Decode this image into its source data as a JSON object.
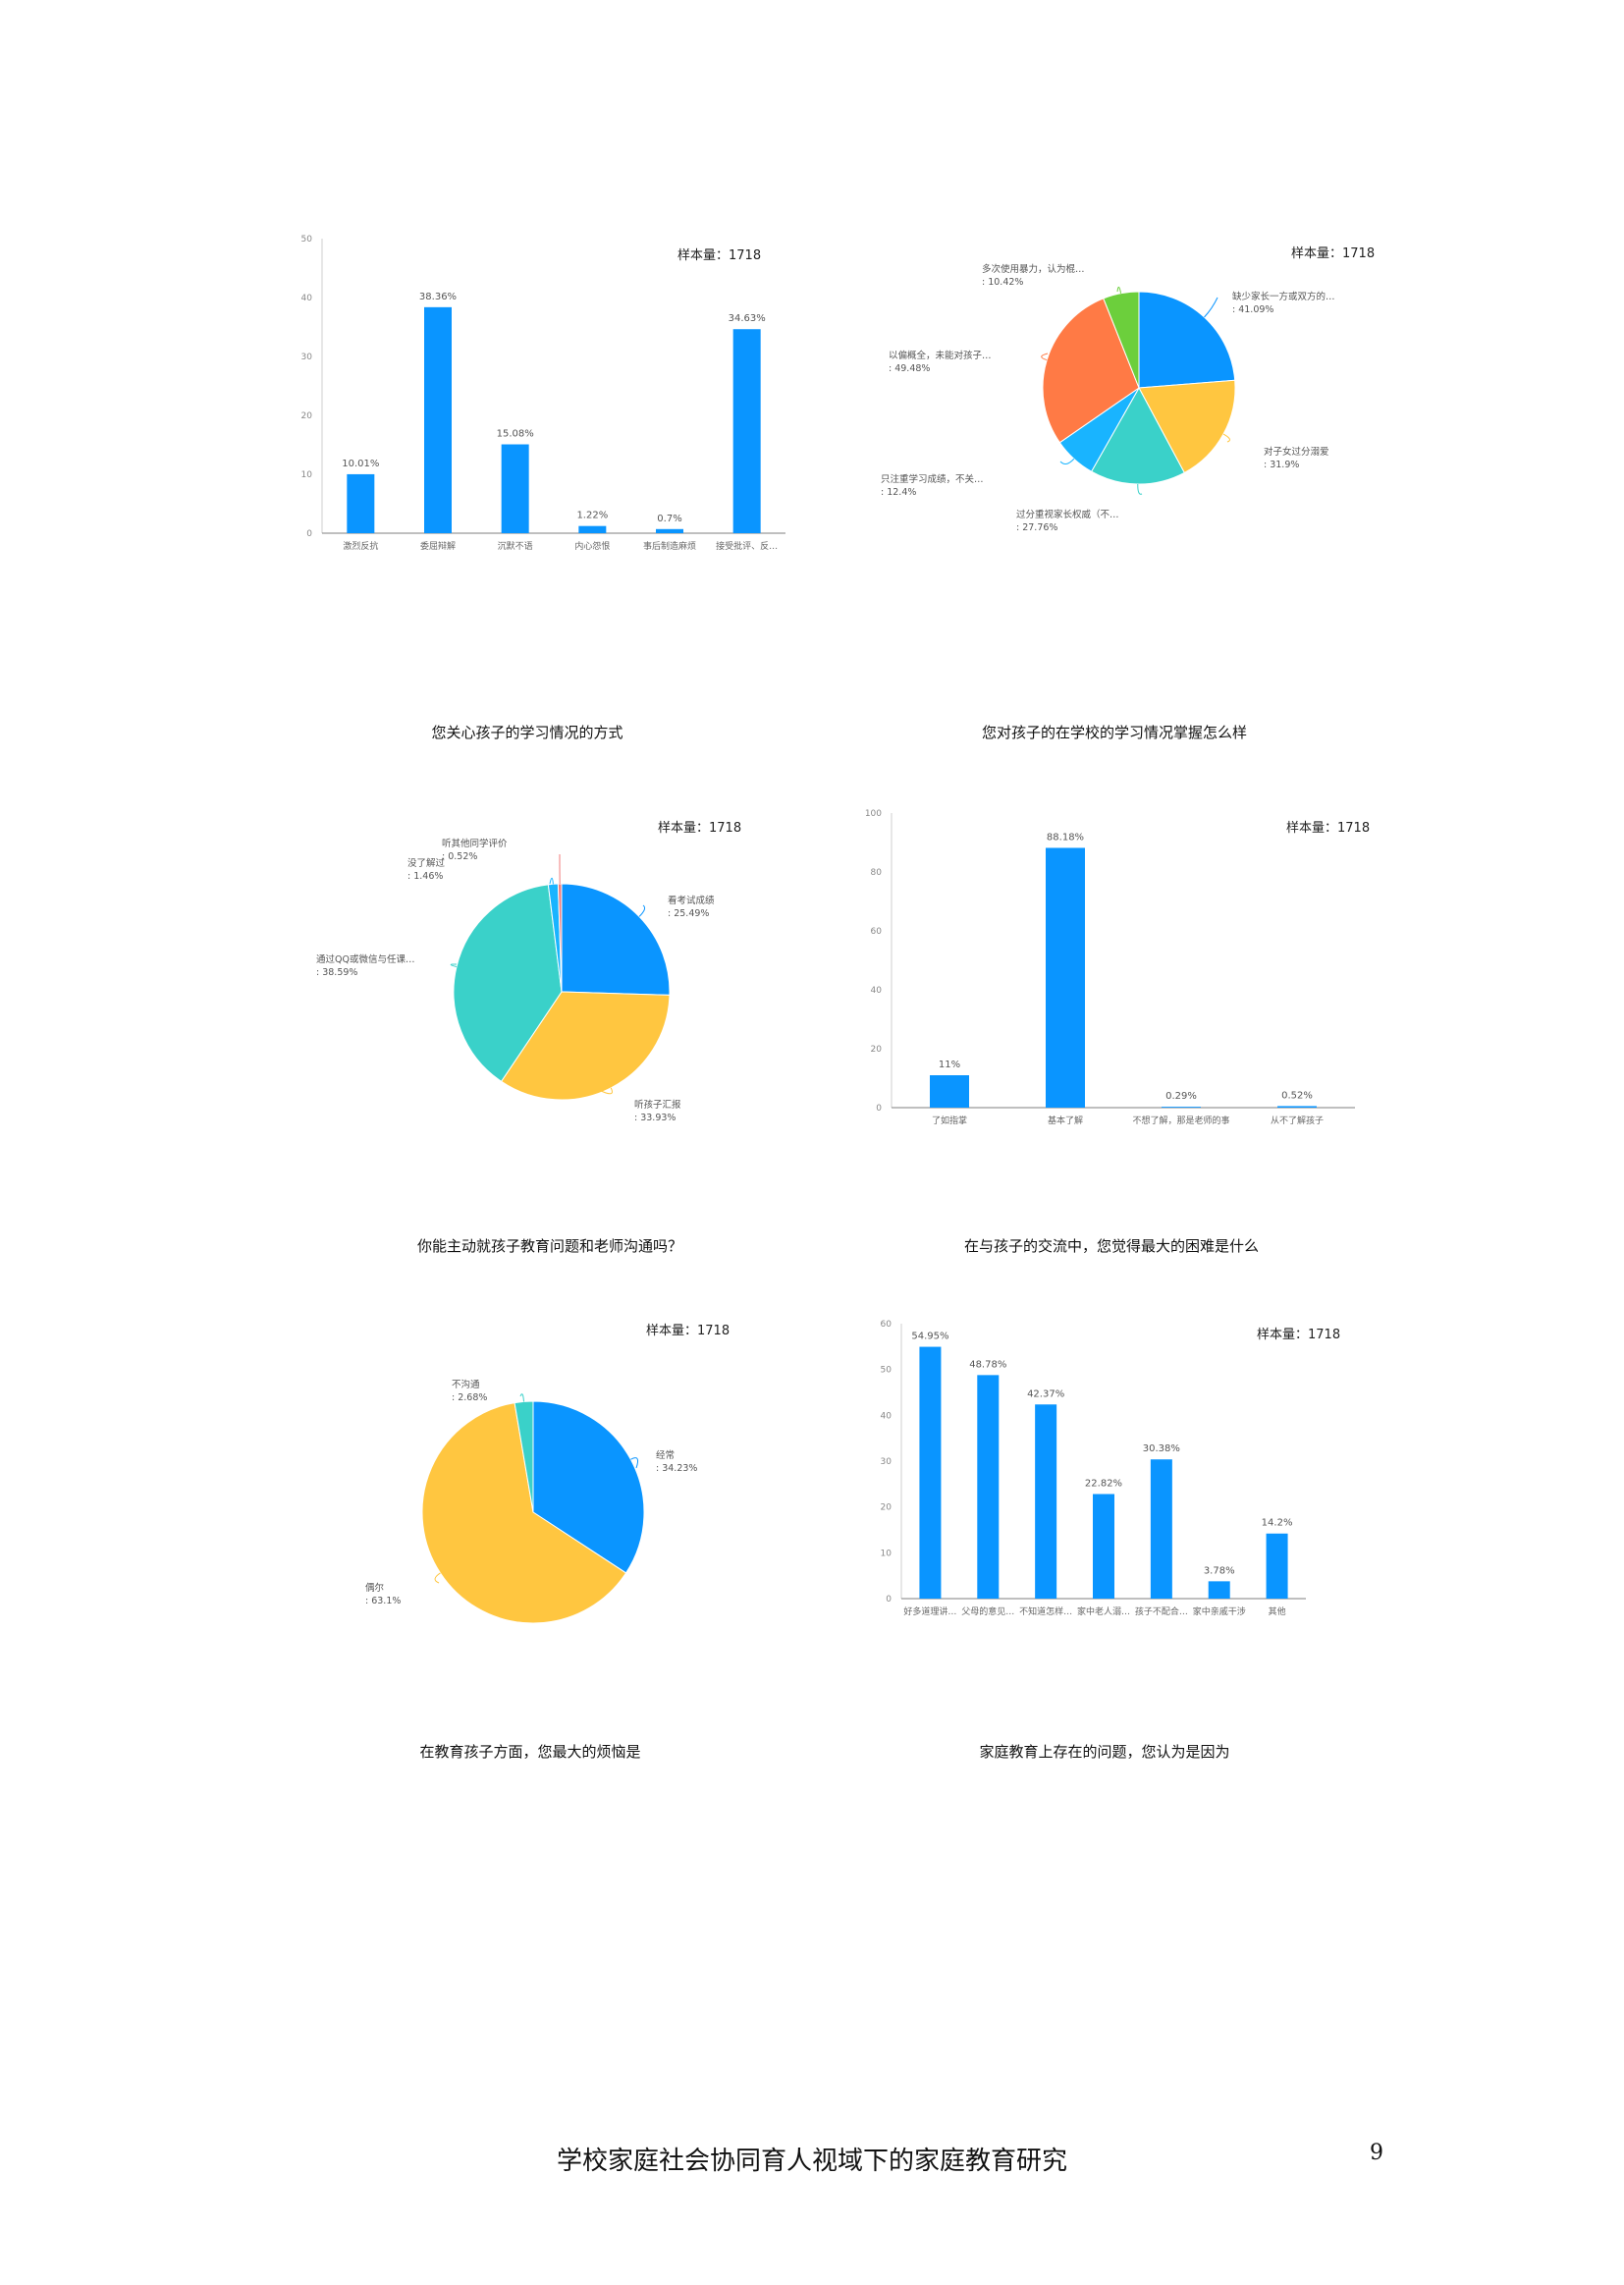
{
  "colors": {
    "blue": "#0a95ff",
    "yellow": "#ffc640",
    "teal": "#3ad1c9",
    "orange": "#ff7a45",
    "green": "#6ccf3c",
    "lightblue": "#19b4ff",
    "pink": "#f07b7b",
    "axis": "#999999"
  },
  "captions": {
    "c1": "您关心孩子的学习情况的方式",
    "c2": "您对孩子的在学校的学习情况掌握怎么样",
    "c3": "你能主动就孩子教育问题和老师沟通吗？",
    "c4": "在与孩子的交流中，您觉得最大的困难是什么",
    "c5": "在教育孩子方面，您最大的烦恼是",
    "c6": "家庭教育上存在的问题，您认为是因为"
  },
  "footer": {
    "title": "学校家庭社会协同育人视域下的家庭教育研究",
    "page": "9"
  },
  "chart_data": [
    {
      "id": "chart1",
      "type": "bar",
      "sample_label": "样本量：1718",
      "categories": [
        "激烈反抗",
        "委屈辩解",
        "沉默不语",
        "内心怨恨",
        "事后制造麻烦",
        "接受批评、反…"
      ],
      "values": [
        10.01,
        38.36,
        15.08,
        1.22,
        0.7,
        34.63
      ],
      "value_labels": [
        "10.01%",
        "38.36%",
        "15.08%",
        "1.22%",
        "0.7%",
        "34.63%"
      ],
      "ylim": [
        0,
        50
      ],
      "yticks": [
        0,
        10,
        20,
        30,
        40,
        50
      ]
    },
    {
      "id": "chart2",
      "type": "pie",
      "sample_label": "样本量：1718",
      "slices": [
        {
          "label": "缺少家长一方或双方的…",
          "pct": "41.09%",
          "value": 41.09,
          "color": "#0a95ff"
        },
        {
          "label": "对子女过分溺爱",
          "pct": "31.9%",
          "value": 31.9,
          "color": "#ffc640"
        },
        {
          "label": "过分重视家长权威（不…",
          "pct": "27.76%",
          "value": 27.76,
          "color": "#3ad1c9"
        },
        {
          "label": "只注重学习成绩，不关…",
          "pct": "12.4%",
          "value": 12.4,
          "color": "#19b4ff"
        },
        {
          "label": "以偏概全，未能对孩子…",
          "pct": "49.48%",
          "value": 49.48,
          "color": "#ff7a45"
        },
        {
          "label": "多次使用暴力，认为棍…",
          "pct": "10.42%",
          "value": 10.42,
          "color": "#6ccf3c"
        }
      ]
    },
    {
      "id": "chart3",
      "type": "pie",
      "sample_label": "样本量：1718",
      "slices": [
        {
          "label": "看考试成绩",
          "pct": "25.49%",
          "value": 25.49,
          "color": "#0a95ff"
        },
        {
          "label": "听孩子汇报",
          "pct": "33.93%",
          "value": 33.93,
          "color": "#ffc640"
        },
        {
          "label": "通过QQ或微信与任课…",
          "pct": "38.59%",
          "value": 38.59,
          "color": "#3ad1c9"
        },
        {
          "label": "没了解过",
          "pct": "1.46%",
          "value": 1.46,
          "color": "#19b4ff"
        },
        {
          "label": "听其他同学评价",
          "pct": "0.52%",
          "value": 0.52,
          "color": "#f07b7b"
        }
      ]
    },
    {
      "id": "chart4",
      "type": "bar",
      "sample_label": "样本量：1718",
      "categories": [
        "了如指掌",
        "基本了解",
        "不想了解，那是老师的事",
        "从不了解孩子"
      ],
      "values": [
        11,
        88.18,
        0.29,
        0.52
      ],
      "value_labels": [
        "11%",
        "88.18%",
        "0.29%",
        "0.52%"
      ],
      "ylim": [
        0,
        100
      ],
      "yticks": [
        0,
        20,
        40,
        60,
        80,
        100
      ]
    },
    {
      "id": "chart5",
      "type": "pie",
      "sample_label": "样本量：1718",
      "slices": [
        {
          "label": "经常",
          "pct": "34.23%",
          "value": 34.23,
          "color": "#0a95ff"
        },
        {
          "label": "偶尔",
          "pct": "63.1%",
          "value": 63.1,
          "color": "#ffc640"
        },
        {
          "label": "不沟通",
          "pct": "2.68%",
          "value": 2.68,
          "color": "#3ad1c9"
        }
      ]
    },
    {
      "id": "chart6",
      "type": "bar",
      "sample_label": "样本量：1718",
      "categories": [
        "好多道理讲…",
        "父母的意见…",
        "不知道怎样…",
        "家中老人溺…",
        "孩子不配合…",
        "家中亲戚干涉",
        "其他"
      ],
      "values": [
        54.95,
        48.78,
        42.37,
        22.82,
        30.38,
        3.78,
        14.2
      ],
      "value_labels": [
        "54.95%",
        "48.78%",
        "42.37%",
        "22.82%",
        "30.38%",
        "3.78%",
        "14.2%"
      ],
      "ylim": [
        0,
        60
      ],
      "yticks": [
        0,
        10,
        20,
        30,
        40,
        50,
        60
      ]
    }
  ]
}
